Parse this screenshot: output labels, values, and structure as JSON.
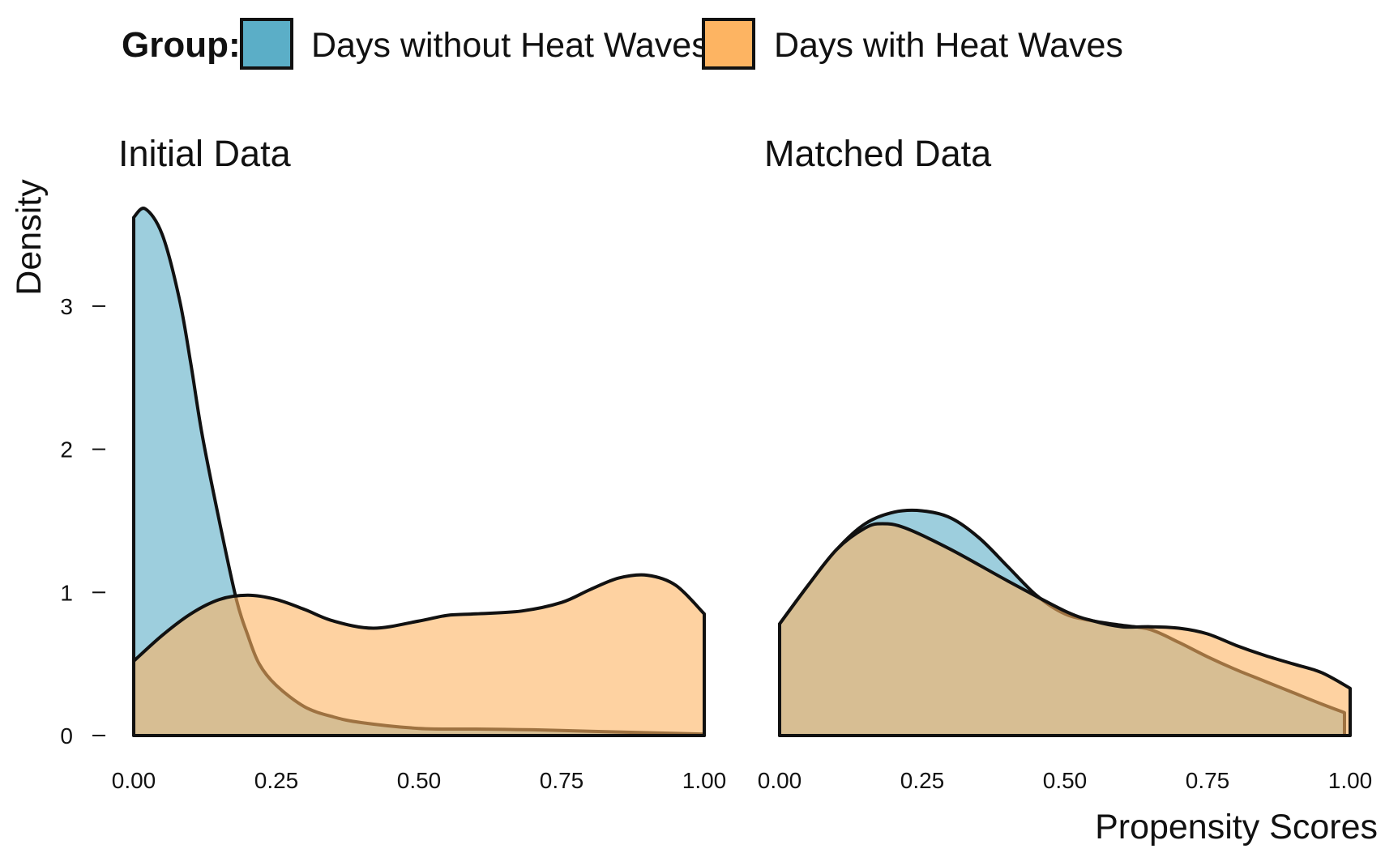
{
  "legend": {
    "title": "Group:",
    "items": [
      {
        "label": "Days without Heat Waves",
        "color": "#5BAEC7"
      },
      {
        "label": "Days with Heat Waves",
        "color": "#FDB462"
      }
    ]
  },
  "axes": {
    "ylabel": "Density",
    "xlabel": "Propensity Scores"
  },
  "colors": {
    "without": "#5BAEC7",
    "with": "#FDB462",
    "outline": "#111111"
  },
  "chart_data": [
    {
      "type": "area",
      "title": "Initial Data",
      "xlim": [
        0,
        1
      ],
      "ylim": [
        0,
        3.75
      ],
      "x_ticks": [
        "0.00",
        "0.25",
        "0.50",
        "0.75",
        "1.00"
      ],
      "y_ticks": [
        "0",
        "1",
        "2",
        "3"
      ],
      "series": [
        {
          "name": "Days without Heat Waves",
          "x": [
            0.0,
            0.02,
            0.05,
            0.08,
            0.1,
            0.12,
            0.15,
            0.18,
            0.2,
            0.22,
            0.25,
            0.3,
            0.35,
            0.4,
            0.5,
            0.6,
            0.7,
            0.8,
            0.9,
            1.0
          ],
          "y": [
            3.62,
            3.68,
            3.5,
            3.05,
            2.6,
            2.1,
            1.5,
            0.95,
            0.7,
            0.5,
            0.35,
            0.2,
            0.13,
            0.09,
            0.05,
            0.045,
            0.04,
            0.03,
            0.02,
            0.01
          ]
        },
        {
          "name": "Days with Heat Waves",
          "x": [
            0.0,
            0.05,
            0.1,
            0.15,
            0.2,
            0.25,
            0.3,
            0.35,
            0.42,
            0.5,
            0.55,
            0.6,
            0.68,
            0.75,
            0.8,
            0.85,
            0.9,
            0.95,
            1.0
          ],
          "y": [
            0.52,
            0.7,
            0.85,
            0.95,
            0.98,
            0.95,
            0.88,
            0.8,
            0.75,
            0.8,
            0.84,
            0.85,
            0.87,
            0.93,
            1.02,
            1.1,
            1.12,
            1.05,
            0.85
          ]
        }
      ]
    },
    {
      "type": "area",
      "title": "Matched Data",
      "xlim": [
        0,
        1
      ],
      "ylim": [
        0,
        3.75
      ],
      "x_ticks": [
        "0.00",
        "0.25",
        "0.50",
        "0.75",
        "1.00"
      ],
      "y_ticks": [],
      "series": [
        {
          "name": "Days without Heat Waves",
          "x": [
            0.0,
            0.05,
            0.1,
            0.15,
            0.2,
            0.25,
            0.3,
            0.35,
            0.4,
            0.45,
            0.5,
            0.55,
            0.6,
            0.65,
            0.7,
            0.75,
            0.8,
            0.85,
            0.9,
            0.95,
            0.99
          ],
          "y": [
            0.78,
            1.05,
            1.3,
            1.48,
            1.56,
            1.57,
            1.52,
            1.38,
            1.18,
            0.98,
            0.85,
            0.8,
            0.77,
            0.74,
            0.65,
            0.55,
            0.46,
            0.38,
            0.3,
            0.22,
            0.16
          ]
        },
        {
          "name": "Days with Heat Waves",
          "x": [
            0.0,
            0.05,
            0.1,
            0.15,
            0.18,
            0.22,
            0.3,
            0.4,
            0.5,
            0.55,
            0.6,
            0.65,
            0.7,
            0.75,
            0.8,
            0.85,
            0.9,
            0.95,
            1.0
          ],
          "y": [
            0.78,
            1.05,
            1.3,
            1.45,
            1.48,
            1.45,
            1.3,
            1.08,
            0.87,
            0.8,
            0.76,
            0.76,
            0.75,
            0.71,
            0.63,
            0.56,
            0.5,
            0.44,
            0.33
          ]
        }
      ]
    }
  ]
}
